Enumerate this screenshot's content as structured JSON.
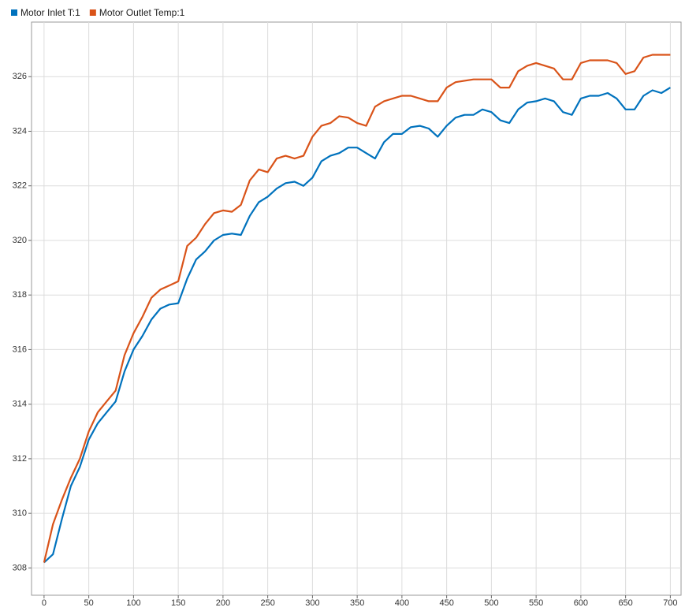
{
  "chart_data": {
    "type": "line",
    "x": [
      0,
      10,
      20,
      30,
      40,
      50,
      60,
      70,
      80,
      90,
      100,
      110,
      120,
      130,
      140,
      150,
      160,
      170,
      180,
      190,
      200,
      210,
      220,
      230,
      240,
      250,
      260,
      270,
      280,
      290,
      300,
      310,
      320,
      330,
      340,
      350,
      360,
      370,
      380,
      390,
      400,
      410,
      420,
      430,
      440,
      450,
      460,
      470,
      480,
      490,
      500,
      510,
      520,
      530,
      540,
      550,
      560,
      570,
      580,
      590,
      600,
      610,
      620,
      630,
      640,
      650,
      660,
      670,
      680,
      690,
      700
    ],
    "series": [
      {
        "name": "Motor Inlet T:1",
        "color": "#0072bd",
        "values": [
          308.2,
          308.5,
          309.8,
          311.0,
          311.7,
          312.7,
          313.3,
          313.7,
          314.1,
          315.2,
          316.0,
          316.5,
          317.1,
          317.5,
          317.65,
          317.7,
          318.6,
          319.3,
          319.6,
          320.0,
          320.2,
          320.25,
          320.2,
          320.9,
          321.4,
          321.6,
          321.9,
          322.1,
          322.15,
          322.0,
          322.3,
          322.9,
          323.1,
          323.2,
          323.4,
          323.4,
          323.2,
          323.0,
          323.6,
          323.9,
          323.9,
          324.15,
          324.2,
          324.1,
          323.8,
          324.2,
          324.5,
          324.6,
          324.6,
          324.8,
          324.7,
          324.4,
          324.3,
          324.8,
          325.05,
          325.1,
          325.2,
          325.1,
          324.7,
          324.6,
          325.2,
          325.3,
          325.3,
          325.4,
          325.2,
          324.8,
          324.8,
          325.3,
          325.5,
          325.4,
          325.6
        ]
      },
      {
        "name": "Motor Outlet Temp:1",
        "color": "#d95319",
        "values": [
          308.2,
          309.6,
          310.5,
          311.3,
          312.0,
          313.0,
          313.7,
          314.1,
          314.5,
          315.8,
          316.6,
          317.2,
          317.9,
          318.2,
          318.35,
          318.5,
          319.8,
          320.1,
          320.6,
          321.0,
          321.1,
          321.05,
          321.3,
          322.2,
          322.6,
          322.5,
          323.0,
          323.1,
          323.0,
          323.1,
          323.8,
          324.2,
          324.3,
          324.55,
          324.5,
          324.3,
          324.2,
          324.9,
          325.1,
          325.2,
          325.3,
          325.3,
          325.2,
          325.1,
          325.1,
          325.6,
          325.8,
          325.85,
          325.9,
          325.9,
          325.9,
          325.6,
          325.6,
          326.2,
          326.4,
          326.5,
          326.4,
          326.3,
          325.9,
          325.9,
          326.5,
          326.6,
          326.6,
          326.6,
          326.5,
          326.1,
          326.2,
          326.7,
          326.8,
          326.8,
          326.8
        ]
      }
    ],
    "xlim": [
      -14,
      712
    ],
    "ylim": [
      307,
      328
    ],
    "xticks": [
      0,
      50,
      100,
      150,
      200,
      250,
      300,
      350,
      400,
      450,
      500,
      550,
      600,
      650,
      700
    ],
    "yticks": [
      308,
      310,
      312,
      314,
      316,
      318,
      320,
      322,
      324,
      326
    ],
    "grid": true
  }
}
